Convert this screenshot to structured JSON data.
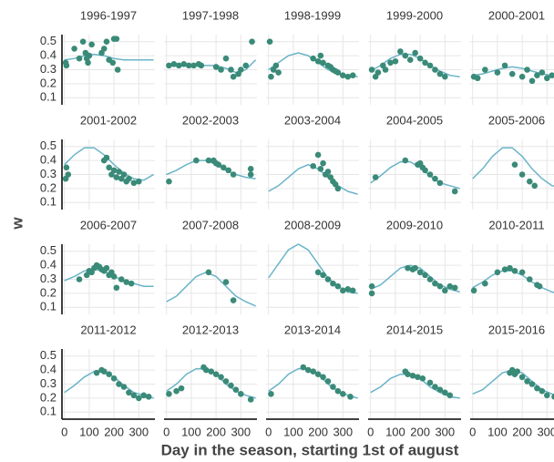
{
  "chart_data": {
    "type": "facet",
    "xlabel": "Day in the season, starting 1st of august",
    "ylabel": "w",
    "xlim": [
      -10,
      365
    ],
    "ylim": [
      0.05,
      0.55
    ],
    "xticks": [
      0,
      100,
      200,
      300
    ],
    "yticks": [
      0.1,
      0.2,
      0.3,
      0.4,
      0.5
    ],
    "grid": true,
    "point_color": "#3a8a78",
    "line_color": "#6ab4c8",
    "curve_x": [
      0,
      40,
      80,
      120,
      160,
      200,
      240,
      280,
      320,
      360
    ],
    "panels": [
      {
        "title": "1996-1997",
        "x": [
          5,
          8,
          40,
          60,
          75,
          85,
          90,
          95,
          100,
          110,
          150,
          160,
          170,
          180,
          195,
          200,
          210,
          215
        ],
        "y": [
          0.35,
          0.33,
          0.45,
          0.38,
          0.5,
          0.42,
          0.38,
          0.35,
          0.4,
          0.48,
          0.42,
          0.45,
          0.5,
          0.37,
          0.35,
          0.52,
          0.52,
          0.3
        ],
        "curve_y": [
          0.37,
          0.38,
          0.4,
          0.41,
          0.4,
          0.38,
          0.37,
          0.37,
          0.37,
          0.37
        ]
      },
      {
        "title": "1997-1998",
        "x": [
          10,
          30,
          50,
          70,
          90,
          110,
          130,
          140,
          200,
          220,
          240,
          260,
          270,
          290,
          300,
          320,
          345
        ],
        "y": [
          0.33,
          0.34,
          0.33,
          0.34,
          0.33,
          0.33,
          0.34,
          0.33,
          0.32,
          0.3,
          0.38,
          0.3,
          0.25,
          0.27,
          0.3,
          0.33,
          0.5
        ],
        "curve_y": [
          0.33,
          0.33,
          0.33,
          0.33,
          0.33,
          0.33,
          0.31,
          0.28,
          0.3,
          0.37
        ]
      },
      {
        "title": "1998-1999",
        "x": [
          5,
          10,
          20,
          30,
          40,
          180,
          200,
          210,
          220,
          240,
          250,
          260,
          270,
          280,
          300,
          320,
          340
        ],
        "y": [
          0.5,
          0.25,
          0.3,
          0.33,
          0.28,
          0.38,
          0.36,
          0.4,
          0.35,
          0.33,
          0.32,
          0.3,
          0.29,
          0.28,
          0.26,
          0.25,
          0.26
        ],
        "curve_y": [
          0.3,
          0.35,
          0.4,
          0.42,
          0.4,
          0.35,
          0.3,
          0.27,
          0.26,
          0.25
        ]
      },
      {
        "title": "1999-2000",
        "x": [
          5,
          20,
          30,
          50,
          60,
          80,
          100,
          120,
          140,
          160,
          180,
          200,
          220,
          240,
          260,
          280,
          300
        ],
        "y": [
          0.3,
          0.25,
          0.28,
          0.33,
          0.3,
          0.35,
          0.36,
          0.43,
          0.4,
          0.37,
          0.42,
          0.38,
          0.35,
          0.33,
          0.3,
          0.27,
          0.25
        ],
        "curve_y": [
          0.29,
          0.33,
          0.38,
          0.41,
          0.41,
          0.38,
          0.33,
          0.29,
          0.26,
          0.25
        ]
      },
      {
        "title": "2000-2001",
        "x": [
          5,
          20,
          50,
          100,
          130,
          160,
          200,
          220,
          240,
          260,
          280,
          300,
          320
        ],
        "y": [
          0.25,
          0.24,
          0.3,
          0.28,
          0.33,
          0.27,
          0.25,
          0.3,
          0.22,
          0.26,
          0.28,
          0.24,
          0.26
        ],
        "curve_y": [
          0.26,
          0.27,
          0.29,
          0.31,
          0.32,
          0.31,
          0.29,
          0.27,
          0.26,
          0.25
        ]
      },
      {
        "title": "2001-2002",
        "x": [
          5,
          8,
          15,
          160,
          170,
          180,
          190,
          200,
          210,
          220,
          230,
          240,
          250,
          260,
          280,
          300
        ],
        "y": [
          0.27,
          0.35,
          0.3,
          0.4,
          0.42,
          0.35,
          0.3,
          0.33,
          0.28,
          0.32,
          0.27,
          0.3,
          0.25,
          0.27,
          0.24,
          0.25
        ],
        "curve_y": [
          0.37,
          0.44,
          0.49,
          0.49,
          0.44,
          0.37,
          0.31,
          0.27,
          0.26,
          0.3
        ]
      },
      {
        "title": "2002-2003",
        "x": [
          10,
          120,
          170,
          190,
          200,
          210,
          230,
          250,
          270,
          340,
          340
        ],
        "y": [
          0.25,
          0.4,
          0.4,
          0.4,
          0.38,
          0.37,
          0.35,
          0.33,
          0.3,
          0.34,
          0.3
        ],
        "curve_y": [
          0.3,
          0.33,
          0.37,
          0.4,
          0.4,
          0.37,
          0.33,
          0.3,
          0.28,
          0.27
        ]
      },
      {
        "title": "2003-2004",
        "x": [
          180,
          200,
          210,
          220,
          230,
          240,
          250,
          260,
          270,
          280
        ],
        "y": [
          0.36,
          0.44,
          0.34,
          0.38,
          0.3,
          0.32,
          0.28,
          0.25,
          0.23,
          0.2
        ],
        "curve_y": [
          0.18,
          0.22,
          0.28,
          0.34,
          0.37,
          0.34,
          0.28,
          0.22,
          0.18,
          0.16
        ]
      },
      {
        "title": "2004-2005",
        "x": [
          20,
          140,
          190,
          200,
          210,
          220,
          240,
          260,
          280,
          340
        ],
        "y": [
          0.28,
          0.4,
          0.37,
          0.38,
          0.35,
          0.33,
          0.3,
          0.27,
          0.24,
          0.18
        ],
        "curve_y": [
          0.24,
          0.29,
          0.35,
          0.39,
          0.39,
          0.35,
          0.29,
          0.24,
          0.22,
          0.2
        ]
      },
      {
        "title": "2005-2006",
        "x": [
          170,
          200,
          230,
          250
        ],
        "y": [
          0.37,
          0.3,
          0.25,
          0.22
        ],
        "curve_y": [
          0.27,
          0.34,
          0.43,
          0.49,
          0.49,
          0.43,
          0.34,
          0.27,
          0.22,
          0.21
        ]
      },
      {
        "title": "2006-2007",
        "x": [
          60,
          90,
          100,
          110,
          120,
          130,
          140,
          150,
          160,
          170,
          180,
          190,
          200,
          210,
          230,
          250,
          270
        ],
        "y": [
          0.3,
          0.33,
          0.36,
          0.35,
          0.38,
          0.4,
          0.39,
          0.37,
          0.36,
          0.38,
          0.33,
          0.35,
          0.32,
          0.24,
          0.3,
          0.28,
          0.27
        ],
        "curve_y": [
          0.29,
          0.32,
          0.36,
          0.37,
          0.36,
          0.32,
          0.29,
          0.27,
          0.25,
          0.25
        ]
      },
      {
        "title": "2007-2008",
        "x": [
          170,
          240,
          270
        ],
        "y": [
          0.35,
          0.28,
          0.15
        ],
        "curve_y": [
          0.14,
          0.18,
          0.25,
          0.32,
          0.35,
          0.32,
          0.25,
          0.18,
          0.14,
          0.11
        ]
      },
      {
        "title": "2008-2009",
        "x": [
          200,
          220,
          240,
          260,
          280,
          300,
          320,
          340
        ],
        "y": [
          0.35,
          0.33,
          0.3,
          0.27,
          0.25,
          0.22,
          0.23,
          0.22
        ],
        "curve_y": [
          0.31,
          0.41,
          0.51,
          0.55,
          0.51,
          0.41,
          0.31,
          0.25,
          0.21,
          0.2
        ]
      },
      {
        "title": "2009-2010",
        "x": [
          5,
          5,
          150,
          170,
          180,
          200,
          220,
          240,
          260,
          280,
          300,
          320,
          340
        ],
        "y": [
          0.25,
          0.2,
          0.38,
          0.37,
          0.38,
          0.35,
          0.33,
          0.3,
          0.27,
          0.25,
          0.22,
          0.25,
          0.24
        ],
        "curve_y": [
          0.23,
          0.26,
          0.32,
          0.38,
          0.4,
          0.38,
          0.32,
          0.26,
          0.23,
          0.21
        ]
      },
      {
        "title": "2010-2011",
        "x": [
          5,
          50,
          100,
          130,
          150,
          170,
          200,
          230,
          260,
          270
        ],
        "y": [
          0.22,
          0.27,
          0.35,
          0.37,
          0.38,
          0.36,
          0.35,
          0.3,
          0.26,
          0.25
        ],
        "curve_y": [
          0.24,
          0.28,
          0.33,
          0.36,
          0.36,
          0.33,
          0.28,
          0.24,
          0.21,
          0.2
        ]
      },
      {
        "title": "2011-2012",
        "x": [
          130,
          150,
          160,
          180,
          200,
          220,
          240,
          260,
          280,
          300,
          320,
          340
        ],
        "y": [
          0.38,
          0.4,
          0.39,
          0.37,
          0.34,
          0.3,
          0.28,
          0.24,
          0.22,
          0.2,
          0.22,
          0.21
        ],
        "curve_y": [
          0.24,
          0.29,
          0.35,
          0.39,
          0.39,
          0.35,
          0.29,
          0.24,
          0.22,
          0.2
        ]
      },
      {
        "title": "2012-2013",
        "x": [
          10,
          40,
          60,
          150,
          160,
          180,
          200,
          220,
          240,
          260,
          280,
          300,
          340
        ],
        "y": [
          0.23,
          0.25,
          0.27,
          0.42,
          0.4,
          0.39,
          0.37,
          0.35,
          0.32,
          0.29,
          0.26,
          0.23,
          0.19
        ],
        "curve_y": [
          0.25,
          0.3,
          0.37,
          0.41,
          0.41,
          0.37,
          0.3,
          0.25,
          0.22,
          0.2
        ]
      },
      {
        "title": "2013-2014",
        "x": [
          10,
          140,
          160,
          180,
          200,
          220,
          240,
          260,
          280,
          300,
          330
        ],
        "y": [
          0.23,
          0.42,
          0.4,
          0.39,
          0.37,
          0.35,
          0.32,
          0.28,
          0.25,
          0.23,
          0.21
        ],
        "curve_y": [
          0.25,
          0.3,
          0.37,
          0.41,
          0.41,
          0.37,
          0.3,
          0.25,
          0.22,
          0.2
        ]
      },
      {
        "title": "2014-2015",
        "x": [
          140,
          150,
          170,
          190,
          210,
          240,
          260,
          280,
          300,
          320
        ],
        "y": [
          0.39,
          0.37,
          0.36,
          0.35,
          0.34,
          0.31,
          0.28,
          0.26,
          0.24,
          0.22
        ],
        "curve_y": [
          0.24,
          0.28,
          0.34,
          0.37,
          0.37,
          0.34,
          0.28,
          0.24,
          0.21,
          0.2
        ]
      },
      {
        "title": "2015-2016",
        "x": [
          150,
          160,
          170,
          180,
          200,
          220,
          240,
          260,
          280,
          300,
          330,
          350
        ],
        "y": [
          0.38,
          0.4,
          0.37,
          0.39,
          0.35,
          0.32,
          0.3,
          0.27,
          0.25,
          0.22,
          0.21,
          0.2
        ],
        "curve_y": [
          0.23,
          0.26,
          0.32,
          0.38,
          0.4,
          0.38,
          0.32,
          0.26,
          0.23,
          0.21
        ]
      }
    ]
  }
}
